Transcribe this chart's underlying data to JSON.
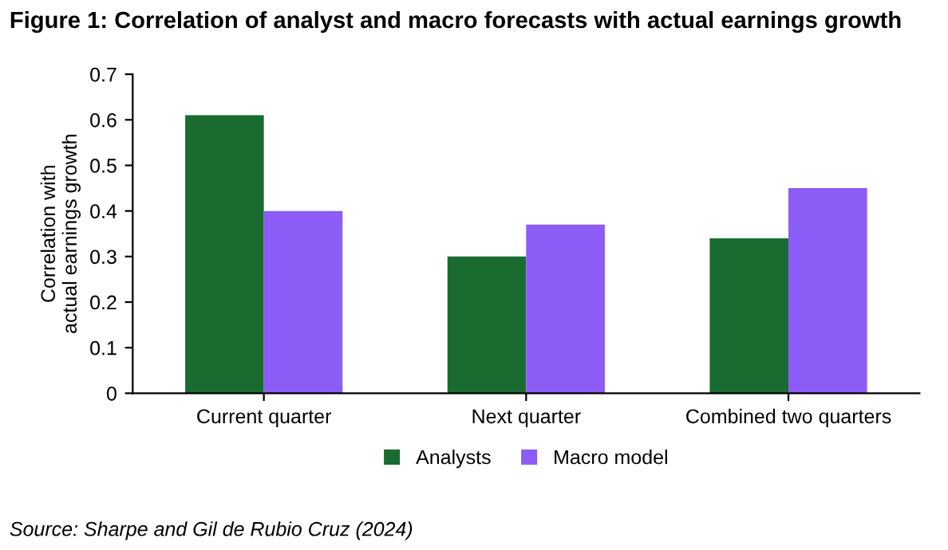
{
  "chart_data": {
    "type": "bar",
    "title": "Figure 1: Correlation of analyst and macro forecasts with actual earnings growth",
    "ylabel": "Correlation with\nactual earnings growth",
    "categories": [
      "Current quarter",
      "Next quarter",
      "Combined two quarters"
    ],
    "series": [
      {
        "name": "Analysts",
        "color": "#1a6b30",
        "values": [
          0.61,
          0.3,
          0.34
        ]
      },
      {
        "name": "Macro model",
        "color": "#8b5cf6",
        "values": [
          0.4,
          0.37,
          0.45
        ]
      }
    ],
    "ylim": [
      0,
      0.7
    ],
    "yticks": [
      0,
      0.1,
      0.2,
      0.3,
      0.4,
      0.5,
      0.6,
      0.7
    ],
    "grid": false,
    "legend": "bottom",
    "annotations": [
      "Source: Sharpe and Gil de Rubio Cruz (2024)"
    ]
  }
}
